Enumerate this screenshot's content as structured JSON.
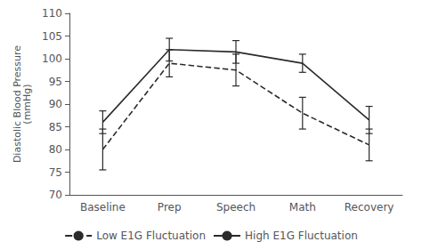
{
  "chart_data": {
    "type": "line",
    "categories": [
      "Baseline",
      "Prep",
      "Speech",
      "Math",
      "Recovery"
    ],
    "series": [
      {
        "name": "Low E1G Fluctuation",
        "color": "#2b2b2b",
        "line_style": "dashed",
        "values": [
          80,
          99,
          97.5,
          88,
          81
        ],
        "errors": [
          4.5,
          3.0,
          3.5,
          3.5,
          3.5
        ]
      },
      {
        "name": "High E1G Fluctuation",
        "color": "#2b2b2b",
        "line_style": "solid",
        "values": [
          86,
          102,
          101.5,
          99,
          86.5
        ],
        "errors": [
          2.5,
          2.5,
          2.5,
          2.0,
          3.0
        ]
      }
    ],
    "ylabel": "Diastolic Blood Pressure\n(mmHg)",
    "ylim": [
      70,
      110
    ],
    "yticks": [
      70,
      75,
      80,
      85,
      90,
      95,
      100,
      105,
      110
    ],
    "legend": "bottom"
  }
}
